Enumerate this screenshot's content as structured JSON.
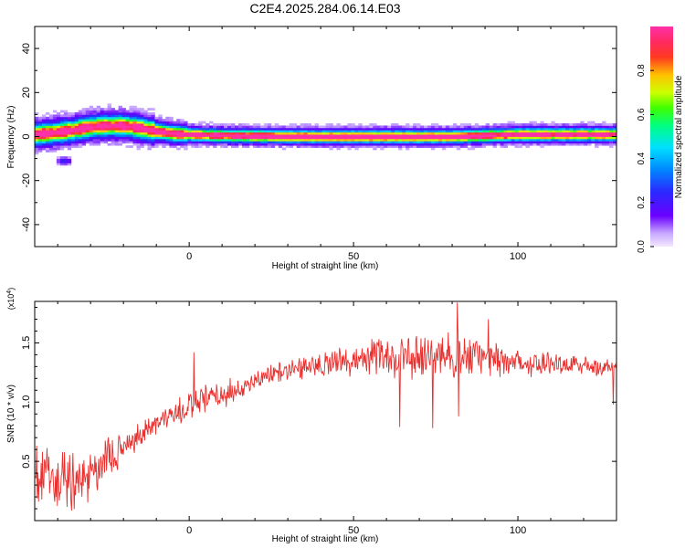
{
  "title": "C2E4.2025.284.06.14.E03",
  "chart_data": [
    {
      "type": "heatmap",
      "xlabel": "Height of straight line (km)",
      "ylabel": "Frequency (Hz)",
      "xlim": [
        -47,
        130
      ],
      "ylim": [
        -50,
        50
      ],
      "xticks": [
        0,
        50,
        100
      ],
      "yticks": [
        -40,
        -20,
        0,
        20,
        40
      ],
      "colorbar": {
        "label": "Normalized spectral amplitude",
        "range": [
          0,
          1
        ],
        "ticks": [
          0.0,
          0.2,
          0.4,
          0.6,
          0.8
        ]
      },
      "ridge": [
        [
          -47,
          1
        ],
        [
          -40,
          2
        ],
        [
          -35,
          3
        ],
        [
          -30,
          4.5
        ],
        [
          -25,
          5
        ],
        [
          -20,
          5
        ],
        [
          -15,
          4
        ],
        [
          -10,
          2.5
        ],
        [
          -5,
          1.5
        ],
        [
          0,
          1
        ],
        [
          10,
          0.5
        ],
        [
          20,
          0.3
        ],
        [
          40,
          0
        ],
        [
          60,
          0
        ],
        [
          80,
          0
        ],
        [
          90,
          0.5
        ],
        [
          100,
          1
        ],
        [
          110,
          1
        ],
        [
          120,
          1
        ],
        [
          130,
          1
        ]
      ],
      "blob": {
        "x": -38,
        "y": -11
      }
    },
    {
      "type": "line",
      "xlabel": "Height of straight line (km)",
      "ylabel": "SNR (10 * v/v)",
      "y_multiplier_label": "(x10^4)",
      "xlim": [
        -47,
        130
      ],
      "ylim": [
        0,
        1.85
      ],
      "xticks": [
        0,
        50,
        100
      ],
      "yticks": [
        0.5,
        1.0,
        1.5
      ],
      "color": "#e8302e",
      "series": [
        {
          "trend": [
            [
              -47,
              0.42
            ],
            [
              -40,
              0.3
            ],
            [
              -35,
              0.32
            ],
            [
              -30,
              0.38
            ],
            [
              -25,
              0.52
            ],
            [
              -20,
              0.62
            ],
            [
              -15,
              0.72
            ],
            [
              -10,
              0.82
            ],
            [
              -5,
              0.9
            ],
            [
              0,
              0.95
            ],
            [
              5,
              1.02
            ],
            [
              10,
              1.06
            ],
            [
              15,
              1.1
            ],
            [
              20,
              1.18
            ],
            [
              25,
              1.24
            ],
            [
              30,
              1.28
            ],
            [
              40,
              1.32
            ],
            [
              50,
              1.36
            ],
            [
              60,
              1.38
            ],
            [
              70,
              1.38
            ],
            [
              80,
              1.39
            ],
            [
              90,
              1.36
            ],
            [
              100,
              1.34
            ],
            [
              110,
              1.33
            ],
            [
              120,
              1.31
            ],
            [
              130,
              1.29
            ]
          ],
          "noise": [
            [
              -47,
              0.28
            ],
            [
              -35,
              0.25
            ],
            [
              -25,
              0.16
            ],
            [
              -10,
              0.1
            ],
            [
              0,
              0.13
            ],
            [
              10,
              0.12
            ],
            [
              20,
              0.07
            ],
            [
              40,
              0.1
            ],
            [
              60,
              0.16
            ],
            [
              80,
              0.2
            ],
            [
              100,
              0.12
            ],
            [
              130,
              0.07
            ]
          ],
          "spikes": [
            [
              1.5,
              1.42
            ],
            [
              64,
              0.79
            ],
            [
              74,
              0.78
            ],
            [
              81.5,
              1.84
            ],
            [
              91,
              1.7
            ],
            [
              82,
              0.88
            ],
            [
              129,
              0.98
            ]
          ]
        }
      ]
    }
  ]
}
